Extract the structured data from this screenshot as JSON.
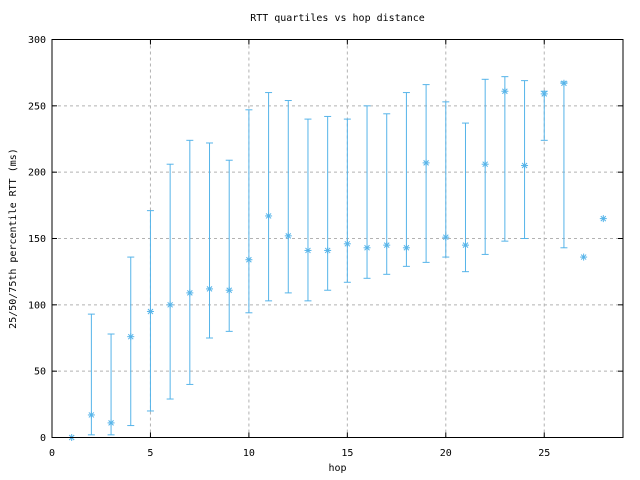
{
  "window": {
    "background": "#ffffff"
  },
  "chart_data": {
    "type": "scatter",
    "subtype": "median-with-quartile-error-bars",
    "title": "RTT quartiles vs hop distance",
    "xlabel": "hop",
    "ylabel": "25/50/75th percentile RTT (ms)",
    "xlim": [
      0,
      29
    ],
    "ylim": [
      0,
      300
    ],
    "xticks": [
      0,
      5,
      10,
      15,
      20,
      25
    ],
    "yticks": [
      0,
      50,
      100,
      150,
      200,
      250,
      300
    ],
    "grid": true,
    "legend": "none",
    "marker": "asterisk",
    "series_description": "Per-hop RTT: asterisk = median (50th percentile), vertical bar with caps = 25th to 75th percentile range",
    "points": [
      {
        "hop": 1,
        "q1": 0,
        "median": 0,
        "q3": 0
      },
      {
        "hop": 2,
        "q1": 2,
        "median": 17,
        "q3": 93
      },
      {
        "hop": 3,
        "q1": 2,
        "median": 11,
        "q3": 78
      },
      {
        "hop": 4,
        "q1": 9,
        "median": 76,
        "q3": 136
      },
      {
        "hop": 5,
        "q1": 20,
        "median": 95,
        "q3": 171
      },
      {
        "hop": 6,
        "q1": 29,
        "median": 100,
        "q3": 206
      },
      {
        "hop": 7,
        "q1": 40,
        "median": 109,
        "q3": 224
      },
      {
        "hop": 8,
        "q1": 75,
        "median": 112,
        "q3": 222
      },
      {
        "hop": 9,
        "q1": 80,
        "median": 111,
        "q3": 209
      },
      {
        "hop": 10,
        "q1": 94,
        "median": 134,
        "q3": 247
      },
      {
        "hop": 11,
        "q1": 103,
        "median": 167,
        "q3": 260
      },
      {
        "hop": 12,
        "q1": 109,
        "median": 152,
        "q3": 254
      },
      {
        "hop": 13,
        "q1": 103,
        "median": 141,
        "q3": 240
      },
      {
        "hop": 14,
        "q1": 111,
        "median": 141,
        "q3": 242
      },
      {
        "hop": 15,
        "q1": 117,
        "median": 146,
        "q3": 240
      },
      {
        "hop": 16,
        "q1": 120,
        "median": 143,
        "q3": 250
      },
      {
        "hop": 17,
        "q1": 123,
        "median": 145,
        "q3": 244
      },
      {
        "hop": 18,
        "q1": 129,
        "median": 143,
        "q3": 260
      },
      {
        "hop": 19,
        "q1": 132,
        "median": 207,
        "q3": 266
      },
      {
        "hop": 20,
        "q1": 136,
        "median": 151,
        "q3": 253
      },
      {
        "hop": 21,
        "q1": 125,
        "median": 145,
        "q3": 237
      },
      {
        "hop": 22,
        "q1": 138,
        "median": 206,
        "q3": 270
      },
      {
        "hop": 23,
        "q1": 148,
        "median": 261,
        "q3": 272
      },
      {
        "hop": 24,
        "q1": 150,
        "median": 205,
        "q3": 269
      },
      {
        "hop": 25,
        "q1": 224,
        "median": 259,
        "q3": 261
      },
      {
        "hop": 26,
        "q1": 143,
        "median": 267,
        "q3": 268
      },
      {
        "hop": 27,
        "q1": 136,
        "median": 136,
        "q3": 136
      },
      {
        "hop": 28,
        "q1": 165,
        "median": 165,
        "q3": 165
      }
    ],
    "colors": {
      "data": "#56b4e9",
      "grid": "#b2b2b2",
      "axis": "#000000",
      "text": "#000000",
      "background": "#ffffff"
    }
  }
}
